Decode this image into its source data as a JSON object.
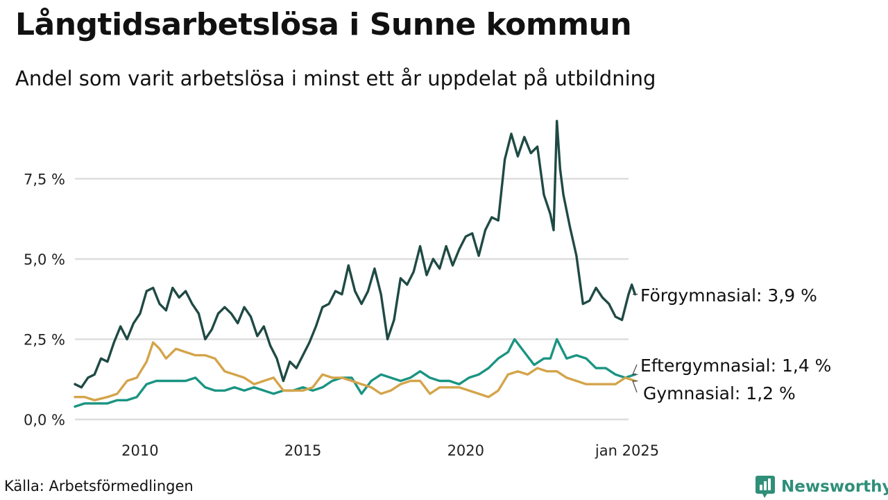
{
  "title": "Långtidsarbetslösa i Sunne kommun",
  "subtitle": "Andel som varit arbetslösa i minst ett år uppdelat på utbildning",
  "source": "Källa: Arbetsförmedlingen",
  "brand": "Newsworthy",
  "colors": {
    "forgymnasial": "#1f4a44",
    "eftergymnasial": "#1a9482",
    "gymnasial": "#d4a44a",
    "grid": "#dddddd",
    "brand": "#2f8f79"
  },
  "chart_data": {
    "type": "line",
    "title": "Långtidsarbetslösa i Sunne kommun",
    "subtitle": "Andel som varit arbetslösa i minst ett år uppdelat på utbildning",
    "xlabel": "",
    "ylabel": "",
    "xlim": [
      2008.0,
      2025.0
    ],
    "ylim": [
      0,
      9.5
    ],
    "grid": true,
    "yticks": [
      {
        "value": 0,
        "label": "0,0 %"
      },
      {
        "value": 2.5,
        "label": "2,5 %"
      },
      {
        "value": 5,
        "label": "5,0 %"
      },
      {
        "value": 7.5,
        "label": "7,5 %"
      }
    ],
    "xticks": [
      {
        "value": 2010,
        "label": "2010"
      },
      {
        "value": 2015,
        "label": "2015"
      },
      {
        "value": 2020,
        "label": "2020"
      },
      {
        "value": 2025,
        "label": "jan 2025"
      }
    ],
    "series": [
      {
        "name": "Förgymnasial",
        "label": "Förgymnasial: 3,9 %",
        "color": "#1f4a44",
        "points": [
          [
            2008.0,
            1.1
          ],
          [
            2008.2,
            1.0
          ],
          [
            2008.4,
            1.3
          ],
          [
            2008.6,
            1.4
          ],
          [
            2008.8,
            1.9
          ],
          [
            2009.0,
            1.8
          ],
          [
            2009.2,
            2.4
          ],
          [
            2009.4,
            2.9
          ],
          [
            2009.6,
            2.5
          ],
          [
            2009.8,
            3.0
          ],
          [
            2010.0,
            3.3
          ],
          [
            2010.2,
            4.0
          ],
          [
            2010.4,
            4.1
          ],
          [
            2010.6,
            3.6
          ],
          [
            2010.8,
            3.4
          ],
          [
            2011.0,
            4.1
          ],
          [
            2011.2,
            3.8
          ],
          [
            2011.4,
            4.0
          ],
          [
            2011.6,
            3.6
          ],
          [
            2011.8,
            3.3
          ],
          [
            2012.0,
            2.5
          ],
          [
            2012.2,
            2.8
          ],
          [
            2012.4,
            3.3
          ],
          [
            2012.6,
            3.5
          ],
          [
            2012.8,
            3.3
          ],
          [
            2013.0,
            3.0
          ],
          [
            2013.2,
            3.5
          ],
          [
            2013.4,
            3.2
          ],
          [
            2013.6,
            2.6
          ],
          [
            2013.8,
            2.9
          ],
          [
            2014.0,
            2.3
          ],
          [
            2014.2,
            1.9
          ],
          [
            2014.4,
            1.2
          ],
          [
            2014.6,
            1.8
          ],
          [
            2014.8,
            1.6
          ],
          [
            2015.0,
            2.0
          ],
          [
            2015.2,
            2.4
          ],
          [
            2015.4,
            2.9
          ],
          [
            2015.6,
            3.5
          ],
          [
            2015.8,
            3.6
          ],
          [
            2016.0,
            4.0
          ],
          [
            2016.2,
            3.9
          ],
          [
            2016.4,
            4.8
          ],
          [
            2016.6,
            4.0
          ],
          [
            2016.8,
            3.6
          ],
          [
            2017.0,
            4.0
          ],
          [
            2017.2,
            4.7
          ],
          [
            2017.4,
            3.9
          ],
          [
            2017.6,
            2.5
          ],
          [
            2017.8,
            3.1
          ],
          [
            2018.0,
            4.4
          ],
          [
            2018.2,
            4.2
          ],
          [
            2018.4,
            4.6
          ],
          [
            2018.6,
            5.4
          ],
          [
            2018.8,
            4.5
          ],
          [
            2019.0,
            5.0
          ],
          [
            2019.2,
            4.7
          ],
          [
            2019.4,
            5.4
          ],
          [
            2019.6,
            4.8
          ],
          [
            2019.8,
            5.3
          ],
          [
            2020.0,
            5.7
          ],
          [
            2020.2,
            5.8
          ],
          [
            2020.4,
            5.1
          ],
          [
            2020.6,
            5.9
          ],
          [
            2020.8,
            6.3
          ],
          [
            2021.0,
            6.2
          ],
          [
            2021.2,
            8.1
          ],
          [
            2021.4,
            8.9
          ],
          [
            2021.6,
            8.2
          ],
          [
            2021.8,
            8.8
          ],
          [
            2022.0,
            8.3
          ],
          [
            2022.2,
            8.5
          ],
          [
            2022.4,
            7.0
          ],
          [
            2022.6,
            6.4
          ],
          [
            2022.7,
            5.9
          ],
          [
            2022.8,
            9.3
          ],
          [
            2022.9,
            7.8
          ],
          [
            2023.0,
            7.0
          ],
          [
            2023.2,
            6.0
          ],
          [
            2023.4,
            5.1
          ],
          [
            2023.6,
            3.6
          ],
          [
            2023.8,
            3.7
          ],
          [
            2024.0,
            4.1
          ],
          [
            2024.2,
            3.8
          ],
          [
            2024.4,
            3.6
          ],
          [
            2024.6,
            3.2
          ],
          [
            2024.8,
            3.1
          ],
          [
            2025.0,
            3.9
          ],
          [
            2025.1,
            4.2
          ],
          [
            2025.2,
            3.9
          ]
        ]
      },
      {
        "name": "Eftergymnasial",
        "label": "Eftergymnasial: 1,4 %",
        "color": "#1a9482",
        "points": [
          [
            2008.0,
            0.4
          ],
          [
            2008.3,
            0.5
          ],
          [
            2008.6,
            0.5
          ],
          [
            2009.0,
            0.5
          ],
          [
            2009.3,
            0.6
          ],
          [
            2009.6,
            0.6
          ],
          [
            2009.9,
            0.7
          ],
          [
            2010.2,
            1.1
          ],
          [
            2010.5,
            1.2
          ],
          [
            2010.8,
            1.2
          ],
          [
            2011.1,
            1.2
          ],
          [
            2011.4,
            1.2
          ],
          [
            2011.7,
            1.3
          ],
          [
            2012.0,
            1.0
          ],
          [
            2012.3,
            0.9
          ],
          [
            2012.6,
            0.9
          ],
          [
            2012.9,
            1.0
          ],
          [
            2013.2,
            0.9
          ],
          [
            2013.5,
            1.0
          ],
          [
            2013.8,
            0.9
          ],
          [
            2014.1,
            0.8
          ],
          [
            2014.4,
            0.9
          ],
          [
            2014.7,
            0.9
          ],
          [
            2015.0,
            1.0
          ],
          [
            2015.3,
            0.9
          ],
          [
            2015.6,
            1.0
          ],
          [
            2015.9,
            1.2
          ],
          [
            2016.2,
            1.3
          ],
          [
            2016.5,
            1.3
          ],
          [
            2016.8,
            0.8
          ],
          [
            2017.1,
            1.2
          ],
          [
            2017.4,
            1.4
          ],
          [
            2017.7,
            1.3
          ],
          [
            2018.0,
            1.2
          ],
          [
            2018.3,
            1.3
          ],
          [
            2018.6,
            1.5
          ],
          [
            2018.9,
            1.3
          ],
          [
            2019.2,
            1.2
          ],
          [
            2019.5,
            1.2
          ],
          [
            2019.8,
            1.1
          ],
          [
            2020.1,
            1.3
          ],
          [
            2020.4,
            1.4
          ],
          [
            2020.7,
            1.6
          ],
          [
            2021.0,
            1.9
          ],
          [
            2021.3,
            2.1
          ],
          [
            2021.5,
            2.5
          ],
          [
            2021.8,
            2.1
          ],
          [
            2022.1,
            1.7
          ],
          [
            2022.4,
            1.9
          ],
          [
            2022.6,
            1.9
          ],
          [
            2022.8,
            2.5
          ],
          [
            2023.1,
            1.9
          ],
          [
            2023.4,
            2.0
          ],
          [
            2023.7,
            1.9
          ],
          [
            2024.0,
            1.6
          ],
          [
            2024.3,
            1.6
          ],
          [
            2024.6,
            1.4
          ],
          [
            2024.9,
            1.3
          ],
          [
            2025.2,
            1.4
          ]
        ]
      },
      {
        "name": "Gymnasial",
        "label": "Gymnasial: 1,2 %",
        "color": "#d4a44a",
        "points": [
          [
            2008.0,
            0.7
          ],
          [
            2008.3,
            0.7
          ],
          [
            2008.6,
            0.6
          ],
          [
            2009.0,
            0.7
          ],
          [
            2009.3,
            0.8
          ],
          [
            2009.6,
            1.2
          ],
          [
            2009.9,
            1.3
          ],
          [
            2010.2,
            1.8
          ],
          [
            2010.4,
            2.4
          ],
          [
            2010.6,
            2.2
          ],
          [
            2010.8,
            1.9
          ],
          [
            2011.1,
            2.2
          ],
          [
            2011.4,
            2.1
          ],
          [
            2011.7,
            2.0
          ],
          [
            2012.0,
            2.0
          ],
          [
            2012.3,
            1.9
          ],
          [
            2012.6,
            1.5
          ],
          [
            2012.9,
            1.4
          ],
          [
            2013.2,
            1.3
          ],
          [
            2013.5,
            1.1
          ],
          [
            2013.8,
            1.2
          ],
          [
            2014.1,
            1.3
          ],
          [
            2014.4,
            0.9
          ],
          [
            2014.7,
            0.9
          ],
          [
            2015.0,
            0.9
          ],
          [
            2015.3,
            1.0
          ],
          [
            2015.6,
            1.4
          ],
          [
            2015.9,
            1.3
          ],
          [
            2016.2,
            1.3
          ],
          [
            2016.5,
            1.2
          ],
          [
            2016.8,
            1.1
          ],
          [
            2017.1,
            1.0
          ],
          [
            2017.4,
            0.8
          ],
          [
            2017.7,
            0.9
          ],
          [
            2018.0,
            1.1
          ],
          [
            2018.3,
            1.2
          ],
          [
            2018.6,
            1.2
          ],
          [
            2018.9,
            0.8
          ],
          [
            2019.2,
            1.0
          ],
          [
            2019.5,
            1.0
          ],
          [
            2019.8,
            1.0
          ],
          [
            2020.1,
            0.9
          ],
          [
            2020.4,
            0.8
          ],
          [
            2020.7,
            0.7
          ],
          [
            2021.0,
            0.9
          ],
          [
            2021.3,
            1.4
          ],
          [
            2021.6,
            1.5
          ],
          [
            2021.9,
            1.4
          ],
          [
            2022.2,
            1.6
          ],
          [
            2022.5,
            1.5
          ],
          [
            2022.8,
            1.5
          ],
          [
            2023.1,
            1.3
          ],
          [
            2023.4,
            1.2
          ],
          [
            2023.7,
            1.1
          ],
          [
            2024.0,
            1.1
          ],
          [
            2024.3,
            1.1
          ],
          [
            2024.6,
            1.1
          ],
          [
            2024.9,
            1.3
          ],
          [
            2025.2,
            1.2
          ]
        ]
      }
    ]
  }
}
